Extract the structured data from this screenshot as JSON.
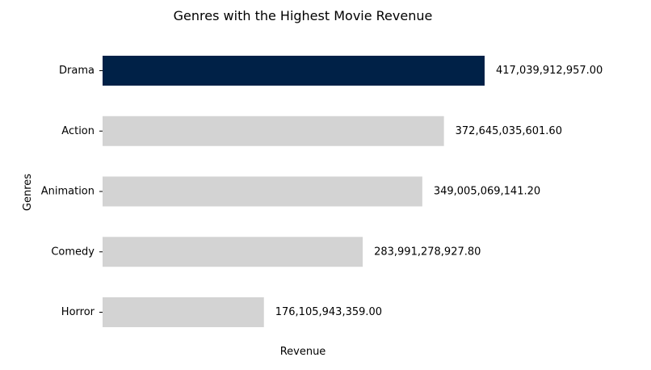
{
  "chart_data": {
    "type": "bar",
    "orientation": "horizontal",
    "title": "Genres with the Highest Movie Revenue",
    "xlabel": "Revenue",
    "ylabel": "Genres",
    "categories": [
      "Drama",
      "Action",
      "Animation",
      "Comedy",
      "Horror"
    ],
    "values": [
      417039912957.0,
      372645035601.6,
      349005069141.2,
      283991278927.8,
      176105943359.0
    ],
    "value_labels": [
      "417,039,912,957.00",
      "372,645,035,601.60",
      "349,005,069,141.20",
      "283,991,278,927.80",
      "176,105,943,359.00"
    ],
    "highlight_color": "#002147",
    "bar_color": "#d3d3d3",
    "highlight_index": 0,
    "grid": false,
    "legend": "none"
  }
}
